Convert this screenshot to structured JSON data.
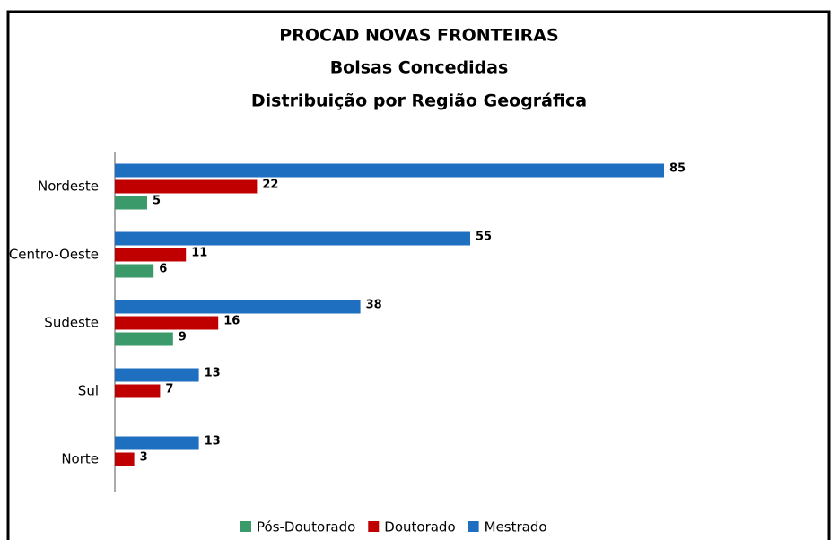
{
  "chart_data": {
    "type": "bar",
    "orientation": "horizontal",
    "title": "PROCAD NOVAS FRONTEIRAS",
    "subtitle": [
      "Bolsas Concedidas",
      "Distribuição por Região Geográfica"
    ],
    "categories": [
      "Nordeste",
      "Centro-Oeste",
      "Sudeste",
      "Sul",
      "Norte"
    ],
    "series": [
      {
        "name": "Pós-Doutorado",
        "color": "#3a9a6a",
        "values": [
          5,
          6,
          9,
          null,
          null
        ]
      },
      {
        "name": "Doutorado",
        "color": "#c00000",
        "values": [
          22,
          11,
          16,
          7,
          3
        ]
      },
      {
        "name": "Mestrado",
        "color": "#1f6fc1",
        "values": [
          85,
          55,
          38,
          13,
          13
        ]
      }
    ],
    "xlim": [
      0,
      100
    ],
    "legend": "bottom"
  }
}
